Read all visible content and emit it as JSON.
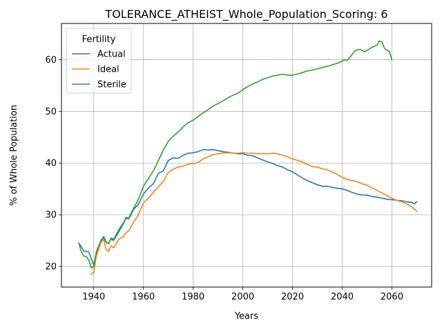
{
  "chart_data": {
    "type": "line",
    "title": "TOLERANCE_ATHEIST_Whole_Population_Scoring: 6",
    "xlabel": "Years",
    "ylabel": "% of Whole Population",
    "xlim": [
      1927,
      2076
    ],
    "ylim": [
      16,
      67
    ],
    "xticks": [
      1940,
      1960,
      1980,
      2000,
      2020,
      2040,
      2060
    ],
    "yticks": [
      20,
      30,
      40,
      50,
      60
    ],
    "grid": true,
    "legend": {
      "title": "Fertility",
      "placement": "top-left"
    },
    "series": [
      {
        "name": "Actual",
        "color": "#1f77b4",
        "x": [
          1934,
          1936,
          1938,
          1939,
          1940,
          1941,
          1943,
          1944,
          1945,
          1946,
          1947,
          1948,
          1950,
          1952,
          1953,
          1954,
          1955,
          1956,
          1958,
          1960,
          1962,
          1964,
          1966,
          1968,
          1970,
          1972,
          1974,
          1976,
          1978,
          1980,
          1982,
          1984,
          1986,
          1988,
          1990,
          1992,
          1994,
          1996,
          1998,
          2000,
          2002,
          2004,
          2006,
          2008,
          2010,
          2012,
          2014,
          2016,
          2018,
          2020,
          2022,
          2024,
          2026,
          2028,
          2030,
          2032,
          2034,
          2036,
          2038,
          2040,
          2042,
          2044,
          2046,
          2048,
          2050,
          2052,
          2054,
          2056,
          2058,
          2060,
          2062,
          2064,
          2066,
          2068,
          2069,
          2070
        ],
        "y": [
          24.5,
          23.0,
          22.8,
          21.5,
          20.2,
          22.5,
          25.0,
          25.8,
          24.7,
          24.4,
          25.5,
          25.2,
          27.0,
          28.5,
          29.3,
          29.2,
          30.0,
          31.0,
          32.0,
          34.0,
          35.2,
          36.0,
          38.0,
          38.5,
          40.5,
          41.0,
          40.9,
          41.5,
          41.9,
          42.0,
          42.2,
          42.6,
          42.5,
          42.6,
          42.4,
          42.2,
          42.1,
          41.9,
          41.8,
          41.8,
          41.5,
          41.4,
          41.0,
          40.6,
          40.2,
          39.9,
          39.5,
          39.2,
          38.7,
          38.3,
          37.7,
          37.1,
          36.6,
          36.2,
          35.8,
          35.5,
          35.5,
          35.3,
          35.1,
          35.0,
          34.7,
          34.3,
          34.0,
          33.8,
          33.8,
          33.5,
          33.4,
          33.2,
          33.0,
          32.9,
          32.8,
          32.7,
          32.5,
          32.4,
          32.1,
          32.5
        ]
      },
      {
        "name": "Ideal",
        "color": "#ff7f0e",
        "x": [
          1939,
          1940,
          1941,
          1943,
          1944,
          1945,
          1946,
          1947,
          1948,
          1950,
          1952,
          1953,
          1954,
          1956,
          1958,
          1960,
          1962,
          1964,
          1966,
          1968,
          1970,
          1972,
          1974,
          1976,
          1978,
          1980,
          1982,
          1984,
          1986,
          1988,
          1990,
          1992,
          1994,
          1996,
          1998,
          2000,
          2002,
          2004,
          2006,
          2008,
          2010,
          2012,
          2014,
          2016,
          2018,
          2020,
          2022,
          2024,
          2026,
          2028,
          2030,
          2032,
          2034,
          2036,
          2038,
          2040,
          2042,
          2044,
          2046,
          2048,
          2050,
          2052,
          2054,
          2056,
          2058,
          2060,
          2062,
          2064,
          2066,
          2068,
          2070
        ],
        "y": [
          18.5,
          18.9,
          22.0,
          24.8,
          25.2,
          23.2,
          22.9,
          24.0,
          23.6,
          25.2,
          25.8,
          26.6,
          26.8,
          28.5,
          30.0,
          32.3,
          33.2,
          34.3,
          35.4,
          36.5,
          38.2,
          38.8,
          39.2,
          39.4,
          39.8,
          39.9,
          40.1,
          40.8,
          41.2,
          41.6,
          41.8,
          41.9,
          42.0,
          41.9,
          41.9,
          42.0,
          41.9,
          41.9,
          41.8,
          41.8,
          41.8,
          41.9,
          41.8,
          41.5,
          41.2,
          40.8,
          40.5,
          40.2,
          39.7,
          39.3,
          39.2,
          38.9,
          38.7,
          38.3,
          37.8,
          37.2,
          36.8,
          36.6,
          36.4,
          36.0,
          35.7,
          35.2,
          34.7,
          34.2,
          33.7,
          33.2,
          32.8,
          32.5,
          32.1,
          31.5,
          30.7
        ]
      },
      {
        "name": "Sterile",
        "color": "#2ca02c",
        "x": [
          1934,
          1935,
          1936,
          1937,
          1938,
          1939,
          1940,
          1941,
          1943,
          1944,
          1945,
          1946,
          1947,
          1948,
          1950,
          1952,
          1953,
          1954,
          1956,
          1958,
          1960,
          1962,
          1964,
          1966,
          1968,
          1970,
          1972,
          1974,
          1976,
          1978,
          1980,
          1982,
          1984,
          1986,
          1988,
          1990,
          1992,
          1994,
          1996,
          1998,
          2000,
          2002,
          2004,
          2006,
          2008,
          2010,
          2012,
          2014,
          2016,
          2018,
          2020,
          2022,
          2024,
          2026,
          2028,
          2030,
          2032,
          2034,
          2036,
          2038,
          2040,
          2041,
          2042,
          2044,
          2045,
          2046,
          2047,
          2048,
          2049,
          2050,
          2052,
          2054,
          2055,
          2056,
          2057,
          2058,
          2059,
          2060
        ],
        "y": [
          24.5,
          22.8,
          22.0,
          21.9,
          21.2,
          19.7,
          20.0,
          22.8,
          25.2,
          25.5,
          24.6,
          24.5,
          25.3,
          25.0,
          26.6,
          28.3,
          29.5,
          29.3,
          31.2,
          33.0,
          35.5,
          37.0,
          38.5,
          40.5,
          42.5,
          44.2,
          45.2,
          46.0,
          47.0,
          47.8,
          48.3,
          49.0,
          49.7,
          50.3,
          51.0,
          51.5,
          52.0,
          52.6,
          53.1,
          53.5,
          54.2,
          54.8,
          55.3,
          55.7,
          56.2,
          56.5,
          56.8,
          57.0,
          57.2,
          57.0,
          57.0,
          57.2,
          57.5,
          57.8,
          58.0,
          58.2,
          58.5,
          58.7,
          59.0,
          59.3,
          59.7,
          60.0,
          59.8,
          61.0,
          61.6,
          61.9,
          62.0,
          61.8,
          61.5,
          61.8,
          62.4,
          62.8,
          63.6,
          63.4,
          62.2,
          61.8,
          61.6,
          60.0
        ]
      }
    ]
  }
}
